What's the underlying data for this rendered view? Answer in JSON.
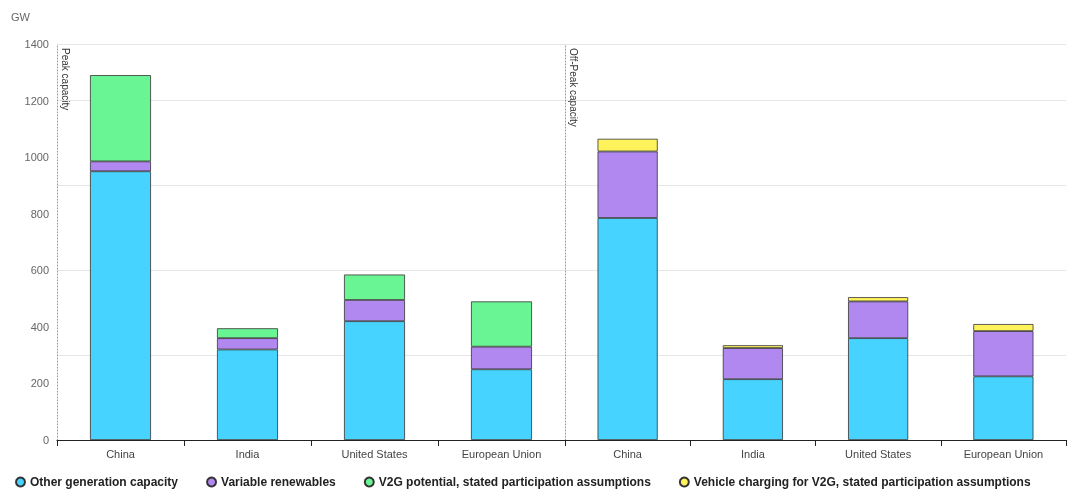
{
  "chart_data": [
    {
      "type": "bar",
      "stacked": true,
      "ylabel": "GW",
      "annotations": [
        "Peak capacity"
      ],
      "categories": [
        "China",
        "India",
        "United States",
        "European Union"
      ],
      "series": [
        {
          "name": "Other generation capacity",
          "color": "#47d3ff",
          "values": [
            950,
            320,
            420,
            250
          ]
        },
        {
          "name": "Variable renewables",
          "color": "#b088f0",
          "values": [
            35,
            40,
            75,
            80
          ]
        },
        {
          "name": "V2G potential, stated participation assumptions",
          "color": "#69f594",
          "values": [
            305,
            35,
            90,
            160
          ]
        },
        {
          "name": "Vehicle charging for V2G, stated participation assumptions",
          "color": "#fff35c",
          "values": [
            null,
            null,
            null,
            null
          ]
        }
      ],
      "ylim": [
        0,
        1400
      ],
      "yticks": [
        0,
        200,
        400,
        600,
        800,
        1000,
        1200,
        1400
      ],
      "grid": "y",
      "legend": "bottom"
    },
    {
      "type": "bar",
      "stacked": true,
      "annotations": [
        "Off-Peak capacity"
      ],
      "categories": [
        "China",
        "India",
        "United States",
        "European Union"
      ],
      "series": [
        {
          "color": "#47d3ff",
          "values": [
            785,
            215,
            360,
            225
          ]
        },
        {
          "color": "#b088f0",
          "values": [
            235,
            110,
            130,
            160
          ]
        },
        {
          "color": "#fff35c",
          "values": [
            45,
            10,
            15,
            25
          ]
        }
      ],
      "ylim": [
        0,
        1400
      ],
      "yticks": [
        0,
        200,
        400,
        600,
        800,
        1000,
        1200,
        1400
      ],
      "grid": "y",
      "tick_labels": "x"
    }
  ]
}
